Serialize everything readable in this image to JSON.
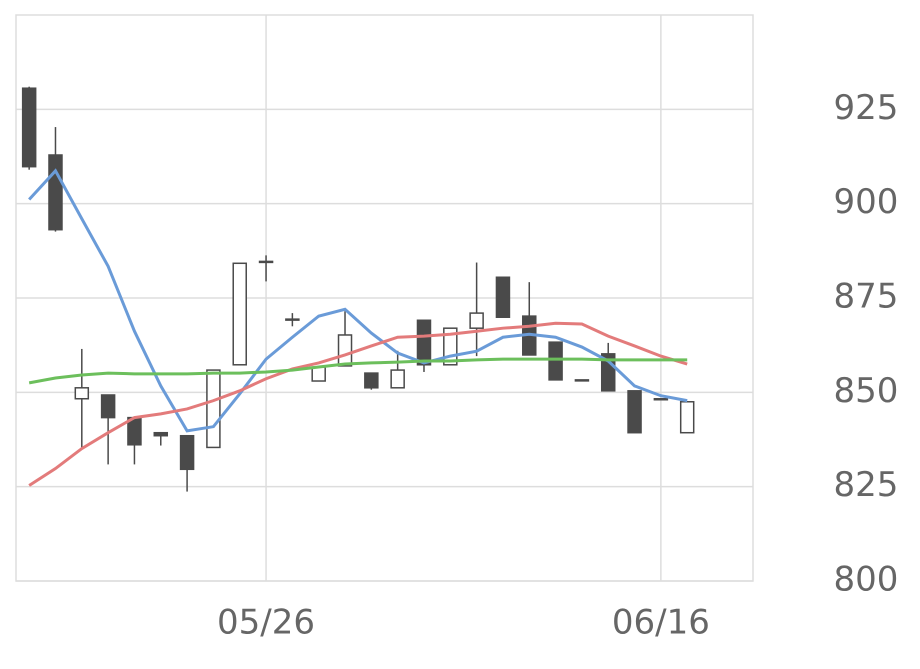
{
  "chart_data": {
    "type": "candlestick",
    "categories": [
      null,
      null,
      null,
      null,
      null,
      null,
      null,
      null,
      null,
      "05/26",
      null,
      null,
      null,
      null,
      null,
      null,
      null,
      null,
      null,
      null,
      null,
      null,
      null,
      null,
      "06/16",
      null,
      null,
      null
    ],
    "open": [
      930.6,
      912.9,
      848.3,
      849.3,
      843.3,
      839.3,
      838.5,
      835.4,
      857.3,
      884.7,
      869.4,
      853.0,
      857.0,
      855.1,
      851.2,
      869.1,
      857.3,
      867.0,
      880.5,
      870.2,
      863.3,
      853.3,
      860.2,
      850.4,
      848.3,
      839.3,
      null,
      null
    ],
    "high": [
      931.0,
      920.3,
      861.5,
      849.3,
      843.3,
      839.3,
      838.5,
      855.9,
      884.2,
      886.3,
      871.0,
      856.7,
      871.5,
      855.1,
      861.0,
      869.1,
      867.0,
      884.4,
      880.5,
      879.2,
      863.3,
      853.3,
      863.1,
      850.4,
      848.3,
      847.5,
      null,
      null
    ],
    "low": [
      909.0,
      892.6,
      835.1,
      830.9,
      830.9,
      835.9,
      823.7,
      835.4,
      857.3,
      879.4,
      867.5,
      853.0,
      857.0,
      850.7,
      851.2,
      855.4,
      857.3,
      859.6,
      869.9,
      859.9,
      853.3,
      853.3,
      850.4,
      839.3,
      848.3,
      839.3,
      null,
      null
    ],
    "close": [
      909.8,
      893.1,
      851.2,
      843.3,
      836.1,
      838.5,
      829.6,
      855.9,
      884.2,
      884.7,
      869.4,
      856.7,
      865.2,
      851.2,
      855.9,
      857.3,
      867.0,
      871.0,
      869.9,
      859.9,
      853.3,
      853.3,
      850.4,
      839.3,
      848.3,
      847.5,
      null,
      null
    ],
    "up_color": "#ffffff",
    "down_color": "#4a4a4a",
    "series": [
      {
        "color": "#6a9bd8",
        "values": [
          901.1,
          908.7,
          896.0,
          883.4,
          866.2,
          851.7,
          839.8,
          840.9,
          849.6,
          858.8,
          864.6,
          870.2,
          872.0,
          865.7,
          860.4,
          857.8,
          859.6,
          860.9,
          864.6,
          865.4,
          864.6,
          862.0,
          858.3,
          851.7,
          849.1,
          847.8,
          null,
          null
        ]
      },
      {
        "color": "#e37b7b",
        "values": [
          825.3,
          829.8,
          835.1,
          839.3,
          843.3,
          844.3,
          845.6,
          847.8,
          850.4,
          853.6,
          856.2,
          857.8,
          859.9,
          862.3,
          864.6,
          864.9,
          865.4,
          866.2,
          867.0,
          867.5,
          868.3,
          868.1,
          864.9,
          862.3,
          859.6,
          857.5,
          null,
          null
        ]
      },
      {
        "color": "#6cbf5c",
        "values": [
          852.5,
          853.8,
          854.6,
          855.1,
          854.9,
          854.9,
          854.9,
          855.1,
          855.1,
          855.4,
          855.9,
          856.7,
          857.5,
          857.8,
          858.0,
          858.3,
          858.3,
          858.6,
          858.8,
          858.8,
          858.8,
          858.8,
          858.6,
          858.6,
          858.6,
          858.6,
          null,
          null
        ]
      }
    ],
    "ylim": [
      800,
      950
    ],
    "yticks": [
      800,
      825,
      850,
      875,
      900,
      925
    ],
    "grid": true
  }
}
